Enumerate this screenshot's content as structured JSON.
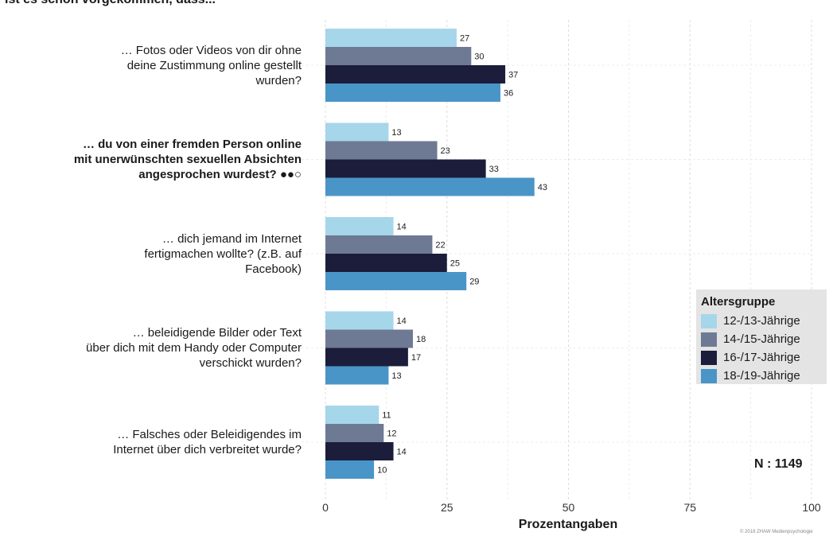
{
  "header": {
    "title_fragment": "ist es schon vorgekommen, dass..."
  },
  "chart_data": {
    "type": "bar",
    "orientation": "horizontal",
    "categories": [
      {
        "lines": [
          "… Fotos oder Videos von dir ohne",
          "deine Zustimmung online gestellt",
          "wurden?"
        ],
        "bold": false
      },
      {
        "lines": [
          "… du von einer fremden Person online",
          "mit unerwünschten sexuellen Absichten",
          "angesprochen wurdest? ●●○"
        ],
        "bold": true
      },
      {
        "lines": [
          "… dich jemand im Internet",
          "fertigmachen wollte? (z.B. auf",
          "Facebook)"
        ],
        "bold": false
      },
      {
        "lines": [
          "… beleidigende Bilder oder Text",
          "über dich mit dem Handy oder Computer",
          "verschickt wurden?"
        ],
        "bold": false
      },
      {
        "lines": [
          "… Falsches oder Beleidigendes im",
          "Internet über dich verbreitet wurde?"
        ],
        "bold": false
      }
    ],
    "series": [
      {
        "name": "12-/13-Jährige",
        "color": "#a6d6ea",
        "values": [
          27,
          13,
          14,
          14,
          11
        ]
      },
      {
        "name": "14-/15-Jährige",
        "color": "#6e7a94",
        "values": [
          30,
          23,
          22,
          18,
          12
        ]
      },
      {
        "name": "16-/17-Jährige",
        "color": "#1b1d3b",
        "values": [
          37,
          33,
          25,
          17,
          14
        ]
      },
      {
        "name": "18-/19-Jährige",
        "color": "#4a95c7",
        "values": [
          36,
          43,
          29,
          13,
          10
        ]
      }
    ],
    "xlabel": "Prozentangaben",
    "xlim": [
      0,
      100
    ],
    "xticks": [
      0,
      25,
      50,
      75,
      100
    ],
    "legend": {
      "title": "Altersgruppe",
      "position": "right"
    },
    "grid": true
  },
  "annotations": {
    "n_label": "N : 1149",
    "copyright": "© 2018 ZHAW Medienpsychologie"
  }
}
